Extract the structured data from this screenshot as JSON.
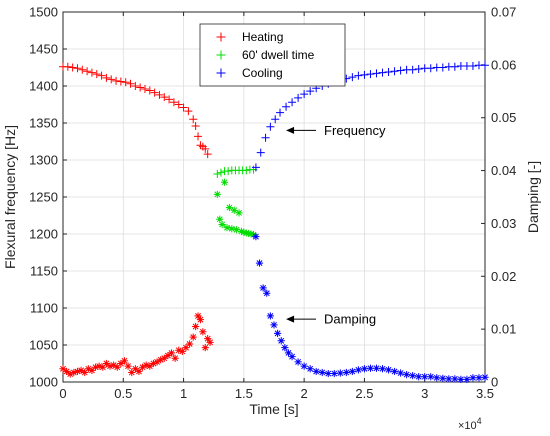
{
  "chart_data": {
    "type": "scatter",
    "title": "",
    "xlabel": "Time [s]",
    "x_multiplier": "×10",
    "x_multiplier_exp": "4",
    "ylabel_left": "Flexural frequency [Hz]",
    "ylabel_right": "Damping [-]",
    "xlim": [
      0,
      35000
    ],
    "ylim_left": [
      1000,
      1500
    ],
    "ylim_right": [
      0,
      0.07
    ],
    "grid": true,
    "legend_position": "top-center",
    "x_tick_labels": [
      "0",
      "0.5",
      "1",
      "1.5",
      "2",
      "2.5",
      "3",
      "3.5"
    ],
    "x_tick_values": [
      0,
      5000,
      10000,
      15000,
      20000,
      25000,
      30000,
      35000
    ],
    "y_left_tick_labels": [
      "1000",
      "1050",
      "1100",
      "1150",
      "1200",
      "1250",
      "1300",
      "1350",
      "1400",
      "1450",
      "1500"
    ],
    "y_left_tick_values": [
      1000,
      1050,
      1100,
      1150,
      1200,
      1250,
      1300,
      1350,
      1400,
      1450,
      1500
    ],
    "y_right_tick_labels": [
      "0",
      "0.01",
      "0.02",
      "0.03",
      "0.04",
      "0.05",
      "0.06",
      "0.07"
    ],
    "y_right_tick_values": [
      0,
      0.01,
      0.02,
      0.03,
      0.04,
      0.05,
      0.06,
      0.07
    ],
    "legend": [
      {
        "label": "Heating",
        "color": "#ff0000"
      },
      {
        "label": "60' dwell time",
        "color": "#00dd00"
      },
      {
        "label": "Cooling",
        "color": "#0000ff"
      }
    ],
    "annotations": [
      {
        "text": "Frequency",
        "points_to_x": 18500,
        "points_to_y": 1340
      },
      {
        "text": "Damping",
        "points_to_x": 18500,
        "points_to_y": 1085
      }
    ],
    "series": [
      {
        "name": "Heating",
        "quantity": "frequency",
        "axis": "left",
        "marker": "+",
        "color": "#ff0000",
        "x": [
          0,
          400,
          800,
          1200,
          1600,
          2000,
          2400,
          2800,
          3200,
          3600,
          4000,
          4400,
          4800,
          5200,
          5600,
          6000,
          6400,
          6800,
          7200,
          7600,
          8000,
          8400,
          8800,
          9200,
          9600,
          10000,
          10400,
          10800,
          11000,
          11200,
          11400,
          11600,
          11800,
          12000
        ],
        "y": [
          1426,
          1426,
          1425,
          1424,
          1422,
          1420,
          1418,
          1416,
          1414,
          1411,
          1409,
          1407,
          1406,
          1405,
          1403,
          1400,
          1398,
          1396,
          1394,
          1391,
          1388,
          1385,
          1382,
          1378,
          1375,
          1371,
          1366,
          1355,
          1346,
          1332,
          1320,
          1318,
          1315,
          1308
        ]
      },
      {
        "name": "Heating",
        "quantity": "damping",
        "axis": "right",
        "marker": "*",
        "color": "#ff0000",
        "x": [
          0,
          300,
          600,
          900,
          1200,
          1500,
          1800,
          2100,
          2400,
          2700,
          3000,
          3300,
          3600,
          3900,
          4200,
          4500,
          4800,
          5100,
          5400,
          5700,
          6000,
          6300,
          6600,
          6900,
          7200,
          7500,
          7800,
          8100,
          8400,
          8700,
          9000,
          9300,
          9600,
          9900,
          10200,
          10500,
          10800,
          11000,
          11200,
          11400,
          11600,
          11800,
          12000,
          12200
        ],
        "y": [
          0.0025,
          0.002,
          0.0015,
          0.0018,
          0.002,
          0.0022,
          0.0018,
          0.0025,
          0.0022,
          0.0028,
          0.003,
          0.0028,
          0.0035,
          0.003,
          0.0032,
          0.0028,
          0.0035,
          0.004,
          0.003,
          0.0018,
          0.0025,
          0.002,
          0.0028,
          0.0032,
          0.003,
          0.0035,
          0.0038,
          0.0042,
          0.0045,
          0.005,
          0.0055,
          0.0045,
          0.006,
          0.0058,
          0.0065,
          0.0072,
          0.0085,
          0.0105,
          0.0125,
          0.0118,
          0.0095,
          0.0065,
          0.0082,
          0.0075
        ]
      },
      {
        "name": "60' dwell time",
        "quantity": "frequency",
        "axis": "left",
        "marker": "+",
        "color": "#00dd00",
        "x": [
          12800,
          13100,
          13400,
          13700,
          14000,
          14300,
          14600,
          14900,
          15200,
          15500,
          15800
        ],
        "y": [
          1281,
          1283,
          1285,
          1285,
          1286,
          1286,
          1286,
          1286,
          1286,
          1287,
          1287
        ]
      },
      {
        "name": "60' dwell time",
        "quantity": "damping",
        "axis": "right",
        "marker": "*",
        "color": "#00dd00",
        "x": [
          12800,
          13000,
          13200,
          13400,
          13600,
          13800,
          14000,
          14200,
          14400,
          14600,
          14800,
          15000,
          15200,
          15400,
          15600,
          15800
        ],
        "y": [
          0.0355,
          0.0308,
          0.0298,
          0.0378,
          0.0292,
          0.033,
          0.029,
          0.0325,
          0.0288,
          0.032,
          0.0285,
          0.0283,
          0.0282,
          0.0281,
          0.028,
          0.0279
        ]
      },
      {
        "name": "Cooling",
        "quantity": "frequency",
        "axis": "left",
        "marker": "+",
        "color": "#0000ff",
        "x": [
          16000,
          16400,
          16800,
          17200,
          17600,
          18000,
          18500,
          19000,
          19500,
          20000,
          20500,
          21000,
          21500,
          22000,
          22500,
          23000,
          23500,
          24000,
          24500,
          25000,
          25500,
          26000,
          26500,
          27000,
          27500,
          28000,
          28500,
          29000,
          29500,
          30000,
          30500,
          31000,
          31500,
          32000,
          32500,
          33000,
          33500,
          34000,
          34500,
          35000
        ],
        "y": [
          1290,
          1310,
          1330,
          1345,
          1355,
          1364,
          1372,
          1378,
          1384,
          1389,
          1393,
          1397,
          1400,
          1403,
          1406,
          1408,
          1410,
          1412,
          1414,
          1415,
          1416,
          1417,
          1418,
          1419,
          1420,
          1421,
          1422,
          1422,
          1423,
          1424,
          1424,
          1425,
          1425,
          1426,
          1426,
          1427,
          1427,
          1427,
          1428,
          1428
        ]
      },
      {
        "name": "Cooling",
        "quantity": "damping",
        "axis": "right",
        "marker": "*",
        "color": "#0000ff",
        "x": [
          16000,
          16300,
          16600,
          16900,
          17200,
          17500,
          17800,
          18100,
          18400,
          18700,
          19000,
          19500,
          20000,
          20500,
          21000,
          21500,
          22000,
          22500,
          23000,
          23500,
          24000,
          24500,
          25000,
          25500,
          26000,
          26500,
          27000,
          27500,
          28000,
          28500,
          29000,
          29500,
          30000,
          30500,
          31000,
          31500,
          32000,
          32500,
          33000,
          33500,
          34000,
          34500,
          35000
        ],
        "y": [
          0.0275,
          0.0225,
          0.0178,
          0.0168,
          0.0125,
          0.0108,
          0.0092,
          0.0078,
          0.0065,
          0.0055,
          0.0048,
          0.0038,
          0.003,
          0.0025,
          0.002,
          0.0018,
          0.0016,
          0.0016,
          0.0017,
          0.0018,
          0.002,
          0.0023,
          0.0025,
          0.0026,
          0.0026,
          0.0025,
          0.0023,
          0.002,
          0.0017,
          0.0014,
          0.0012,
          0.001,
          0.001,
          0.001,
          0.0008,
          0.0007,
          0.0006,
          0.0006,
          0.0005,
          0.0005,
          0.0008,
          0.0008,
          0.0009
        ]
      }
    ]
  }
}
